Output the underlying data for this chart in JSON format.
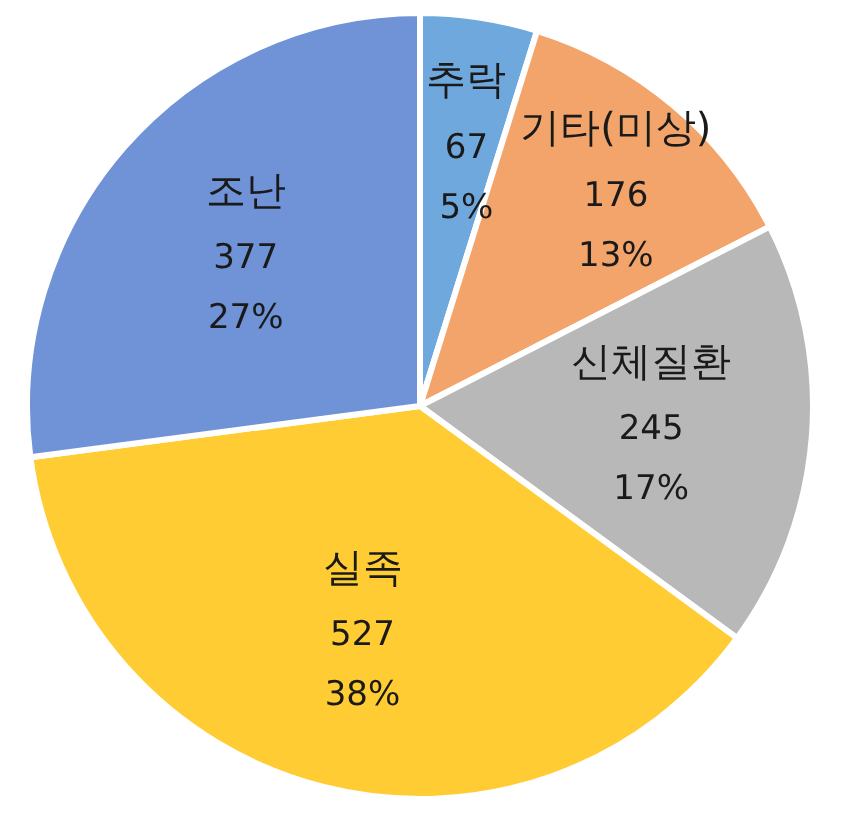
{
  "chart_data": {
    "type": "pie",
    "categories": [
      "추락",
      "기타(미상)",
      "신체질환",
      "실족",
      "조난"
    ],
    "values": [
      67,
      176,
      245,
      527,
      377
    ],
    "colors": [
      "#6fa8dc",
      "#f2a46a",
      "#b8b8b8",
      "#ffcc33",
      "#6f93d6"
    ],
    "value_labels": [
      "67\n5%",
      "176\n13%",
      "245\n17%",
      "527\n38%",
      "377\n27%"
    ]
  }
}
